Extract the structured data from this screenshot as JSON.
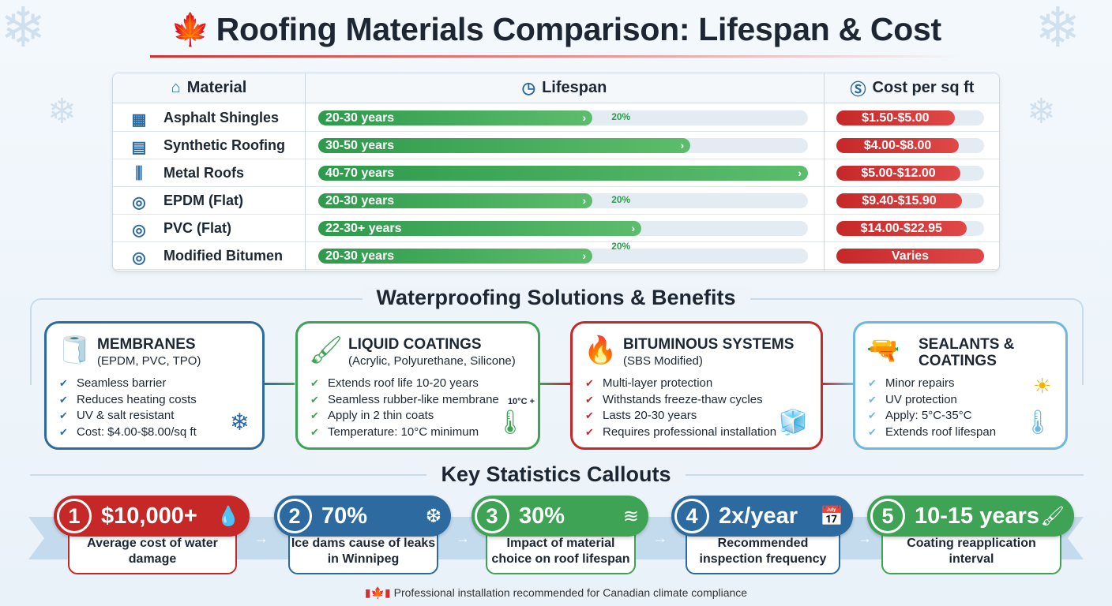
{
  "title": "Roofing Materials Comparison: Lifespan & Cost",
  "colors": {
    "green": "#2e9a4c",
    "red": "#c62828",
    "blue": "#2c6aa0",
    "light_blue": "#6cb8de"
  },
  "table": {
    "headers": {
      "material": "Material",
      "lifespan": "Lifespan",
      "cost": "Cost per sq ft"
    },
    "header_icons": {
      "material": "house-icon",
      "lifespan": "clock-icon",
      "cost": "dollar-icon"
    },
    "rows": [
      {
        "material": "Asphalt Shingles",
        "icon": "shingles-icon",
        "lifespan": "20-30 years",
        "lifespan_fill_pct": 56,
        "cost": "$1.50-$5.00",
        "cost_fill_pct": 80,
        "note": "20%"
      },
      {
        "material": "Synthetic Roofing",
        "icon": "tiles-icon",
        "lifespan": "30-50 years",
        "lifespan_fill_pct": 76,
        "cost": "$4.00-$8.00",
        "cost_fill_pct": 83
      },
      {
        "material": "Metal Roofs",
        "icon": "metal-panel-icon",
        "lifespan": "40-70 years",
        "lifespan_fill_pct": 100,
        "cost": "$5.00-$12.00",
        "cost_fill_pct": 84
      },
      {
        "material": "EPDM (Flat)",
        "icon": "roll-icon",
        "lifespan": "20-30 years",
        "lifespan_fill_pct": 56,
        "cost": "$9.40-$15.90",
        "cost_fill_pct": 85,
        "note": "20%"
      },
      {
        "material": "PVC (Flat)",
        "icon": "roll-icon",
        "lifespan": "22-30+ years",
        "lifespan_fill_pct": 66,
        "cost": "$14.00-$22.95",
        "cost_fill_pct": 88
      },
      {
        "material": "Modified Bitumen",
        "icon": "roll-icon",
        "lifespan": "20-30 years",
        "lifespan_fill_pct": 56,
        "cost": "Varies",
        "cost_fill_pct": 100,
        "note": "20%"
      }
    ]
  },
  "waterproofing": {
    "title": "Waterproofing Solutions & Benefits",
    "cards": [
      {
        "title": "MEMBRANES",
        "subtitle": "(EPDM, PVC, TPO)",
        "icon": "membrane-roll-icon",
        "deco": "snowflake-icon",
        "items": [
          "Seamless barrier",
          "Reduces heating costs",
          "UV & salt resistant",
          "Cost: $4.00-$8.00/sq ft"
        ]
      },
      {
        "title": "LIQUID COATINGS",
        "subtitle": "(Acrylic, Polyurethane, Silicone)",
        "icon": "paint-roller-icon",
        "deco": "thermometer-icon",
        "deco_label": "10°C +",
        "items": [
          "Extends roof life 10-20 years",
          "Seamless rubber-like membrane",
          "Apply in 2 thin coats",
          "Temperature: 10°C minimum"
        ]
      },
      {
        "title": "BITUMINOUS SYSTEMS",
        "subtitle": "(SBS Modified)",
        "icon": "torch-layers-icon",
        "deco": "ice-cube-icon",
        "items": [
          "Multi-layer protection",
          "Withstands freeze-thaw cycles",
          "Lasts 20-30 years",
          "Requires professional installation"
        ]
      },
      {
        "title": "SEALANTS & COATINGS",
        "subtitle": "",
        "icon": "caulk-gun-icon",
        "deco": "sun-thermometer-icon",
        "items": [
          "Minor repairs",
          "UV protection",
          "Apply: 5°C-35°C",
          "Extends roof lifespan"
        ]
      }
    ]
  },
  "stats": {
    "title": "Key Statistics Callouts",
    "items": [
      {
        "num": "1",
        "value": "$10,000+",
        "label": "Average cost of water damage",
        "icon": "water-hand-icon"
      },
      {
        "num": "2",
        "value": "70%",
        "label": "Ice dams cause of leaks in Winnipeg",
        "icon": "icicle-icon"
      },
      {
        "num": "3",
        "value": "30%",
        "label": "Impact of material choice on roof lifespan",
        "icon": "layers-icon"
      },
      {
        "num": "4",
        "value": "2x/year",
        "label": "Recommended inspection frequency",
        "icon": "calendar-eye-icon"
      },
      {
        "num": "5",
        "value": "10-15 years",
        "label": "Coating reapplication interval",
        "icon": "brush-icon"
      }
    ]
  },
  "footer": "Professional installation recommended for Canadian climate compliance"
}
